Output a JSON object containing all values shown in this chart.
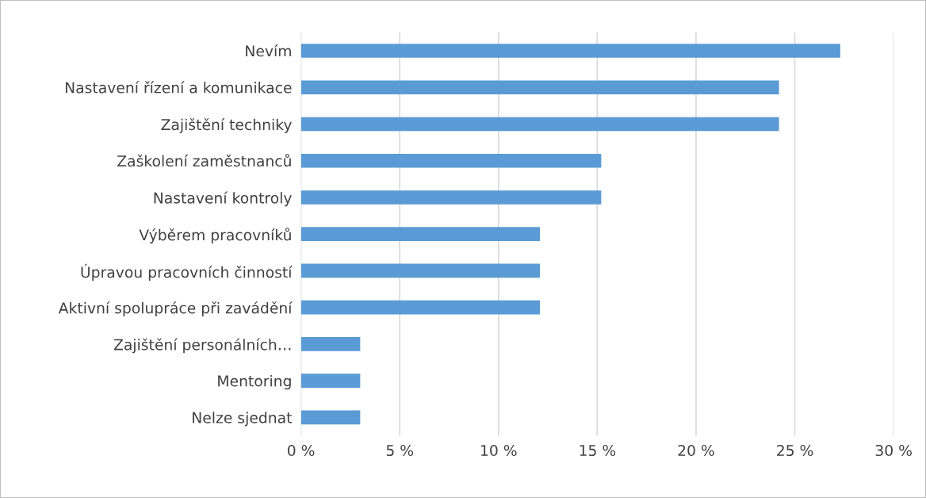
{
  "chart_data": {
    "type": "bar",
    "orientation": "horizontal",
    "categories": [
      "Nevím",
      "Nastavení řízení a komunikace",
      "Zajištění techniky",
      "Zaškolení zaměstnanců",
      "Nastavení kontroly",
      "Výběrem pracovníků",
      "Úpravou pracovních činností",
      "Aktivní spolupráce při zavádění",
      "Zajištění personálních…",
      "Mentoring",
      "Nelze sjednat"
    ],
    "values": [
      27.3,
      24.2,
      24.2,
      15.2,
      15.2,
      12.1,
      12.1,
      12.1,
      3.0,
      3.0,
      3.0
    ],
    "color": "#5b9bd5",
    "xlim": [
      0,
      30
    ],
    "xticks": [
      {
        "value": 0,
        "label": "0 %"
      },
      {
        "value": 5,
        "label": "5 %"
      },
      {
        "value": 10,
        "label": "10 %"
      },
      {
        "value": 15,
        "label": "15 %"
      },
      {
        "value": 20,
        "label": "20 %"
      },
      {
        "value": 25,
        "label": "25 %"
      },
      {
        "value": 30,
        "label": "30 %"
      }
    ],
    "grid": "x"
  }
}
